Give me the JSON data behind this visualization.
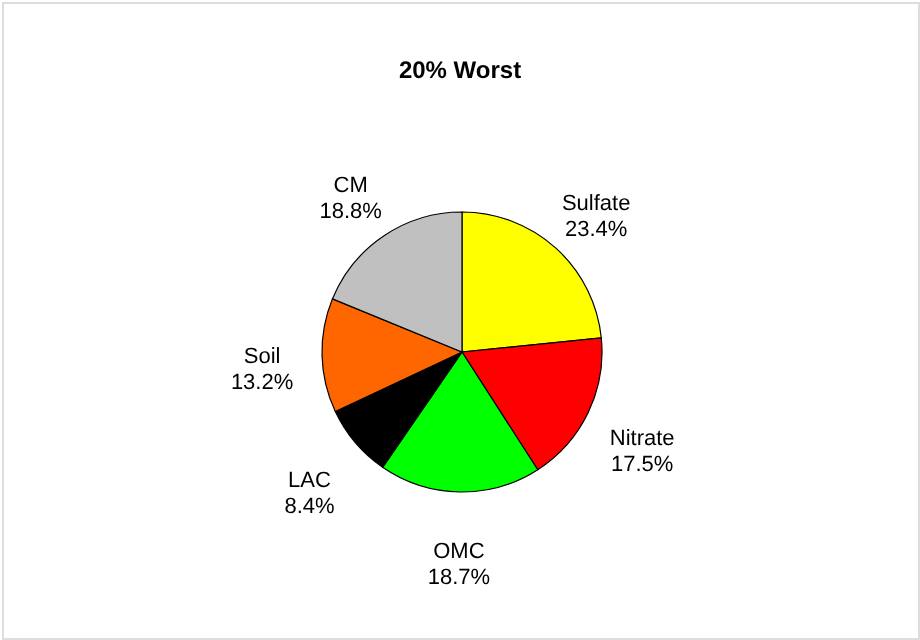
{
  "chart_data": {
    "type": "pie",
    "title": "20% Worst",
    "categories": [
      "Sulfate",
      "Nitrate",
      "OMC",
      "LAC",
      "Soil",
      "CM"
    ],
    "values": [
      23.4,
      17.5,
      18.7,
      8.4,
      13.2,
      18.8
    ],
    "value_labels": [
      "23.4%",
      "17.5%",
      "18.7%",
      "8.4%",
      "13.2%",
      "18.8%"
    ],
    "colors": [
      "#ffff00",
      "#ff0000",
      "#00ff00",
      "#000000",
      "#ff6600",
      "#c0c0c0"
    ],
    "legend": false
  }
}
